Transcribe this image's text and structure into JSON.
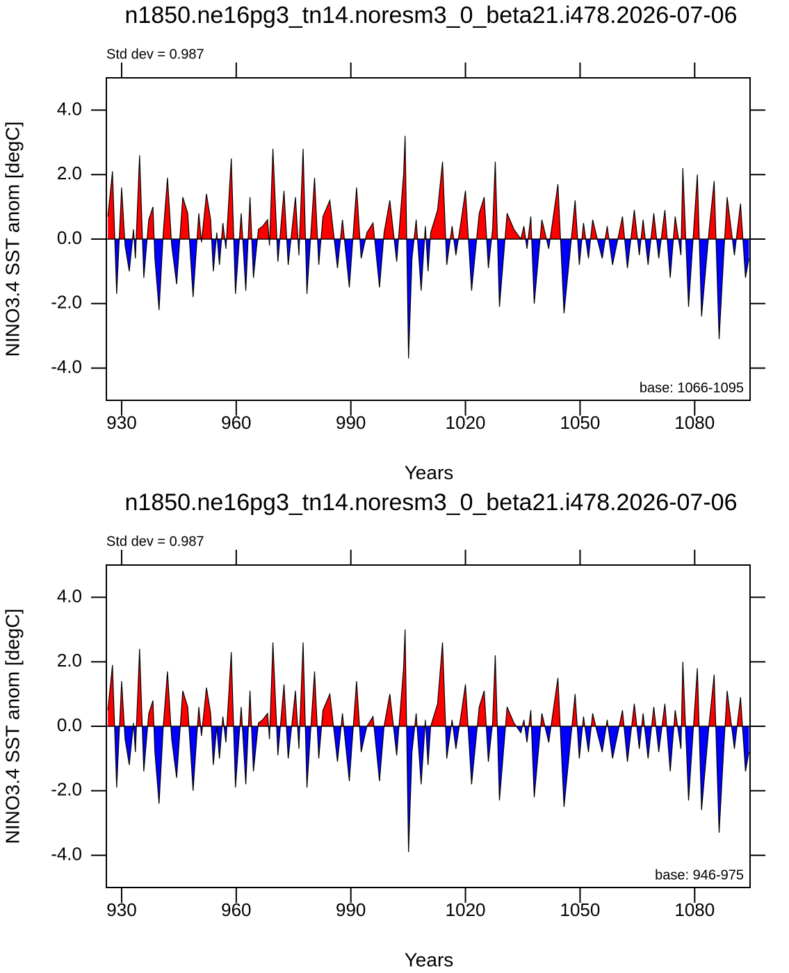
{
  "chart_data": [
    {
      "type": "area",
      "title": "n1850.ne16pg3_tn14.noresm3_0_beta21.i478.2026-07-06",
      "annotation": "Std dev = 0.987",
      "base_label": "base: 1066-1095",
      "x_label": "Years",
      "y_label": "NINO3.4 SST anom [degC]",
      "positive_color": "#ff0000",
      "negative_color": "#0000ff",
      "line_color": "#000000",
      "xlim": [
        926,
        1094.5
      ],
      "ylim": [
        -5,
        5
      ],
      "xticks": [
        930,
        960,
        990,
        1020,
        1050,
        1080
      ],
      "yticks": [
        {
          "value": -4,
          "label": "-4.0"
        },
        {
          "value": -2,
          "label": "-2.0"
        },
        {
          "value": 0,
          "label": "0.0"
        },
        {
          "value": 2,
          "label": "2.0"
        },
        {
          "value": 4,
          "label": "4.0"
        }
      ],
      "x": [
        926.4,
        927.6,
        928.7,
        930,
        930.9,
        932,
        933.1,
        933.6,
        934.7,
        935.8,
        937.1,
        938.2,
        938.7,
        939.8,
        940.9,
        942,
        943.1,
        944.4,
        946,
        947.3,
        948.7,
        950.2,
        950.9,
        952.2,
        953.3,
        954,
        954.9,
        955.6,
        956.5,
        957.3,
        958.7,
        959.8,
        961.3,
        962.5,
        963.6,
        964.5,
        965.8,
        966.9,
        968.2,
        968.7,
        969.6,
        970.9,
        972.5,
        973.6,
        975.5,
        976.4,
        977.5,
        978.5,
        980.5,
        981.6,
        982.7,
        984.5,
        986.5,
        987.8,
        989.6,
        991.5,
        992.7,
        994.2,
        995.8,
        997.5,
        998.7,
        1000.2,
        1002,
        1003.8,
        1004.2,
        1005.1,
        1006,
        1007.1,
        1008.4,
        1009.5,
        1010.2,
        1010.9,
        1012.7,
        1014,
        1015.1,
        1016.5,
        1017.5,
        1018.9,
        1020,
        1021.6,
        1023.6,
        1024.9,
        1026,
        1027.1,
        1027.8,
        1028.9,
        1030.9,
        1032.7,
        1034.5,
        1035.3,
        1036.1,
        1037.1,
        1038,
        1040,
        1041.8,
        1044.2,
        1045.8,
        1047.3,
        1048.7,
        1049.8,
        1050.9,
        1052.2,
        1053.3,
        1054.5,
        1055.8,
        1057.1,
        1058.5,
        1061.1,
        1062.4,
        1064.2,
        1065.5,
        1066.5,
        1067.8,
        1069.3,
        1070.6,
        1072.2,
        1073.6,
        1074.9,
        1076.4,
        1076.9,
        1078.4,
        1080.7,
        1081.8,
        1083.8,
        1085.1,
        1086.4,
        1087.6,
        1088.5,
        1090.4,
        1092,
        1093.3,
        1094.2
      ],
      "values": [
        0.7,
        2.1,
        -1.7,
        1.6,
        -0.2,
        -1.0,
        0.3,
        -0.6,
        2.6,
        -1.2,
        0.6,
        1.0,
        -0.6,
        -2.2,
        0.2,
        1.9,
        -0.2,
        -1.4,
        1.3,
        0.8,
        -1.8,
        0.8,
        -0.1,
        1.4,
        0.6,
        -1.0,
        0.2,
        -0.8,
        0.5,
        -0.3,
        2.5,
        -1.7,
        0.8,
        -1.6,
        1.3,
        -1.2,
        0.3,
        0.4,
        0.6,
        -0.2,
        2.8,
        -0.7,
        1.5,
        -0.8,
        1.3,
        -0.5,
        2.8,
        -1.7,
        1.9,
        -0.8,
        0.7,
        1.2,
        -0.9,
        0.6,
        -1.5,
        1.6,
        -0.6,
        0.2,
        0.5,
        -1.5,
        0.2,
        1.2,
        -0.7,
        2.0,
        3.2,
        -3.7,
        -0.6,
        0.6,
        -1.6,
        0.4,
        -1.0,
        0.2,
        0.9,
        2.4,
        -0.8,
        0.4,
        -0.5,
        0.6,
        1.5,
        -1.6,
        0.8,
        1.3,
        -0.9,
        0.3,
        2.4,
        -2.1,
        0.8,
        0.3,
        0.0,
        0.4,
        -0.3,
        0.7,
        -2.0,
        0.6,
        -0.3,
        1.7,
        -2.3,
        -0.5,
        1.2,
        -0.8,
        0.5,
        -0.6,
        0.6,
        0.0,
        -0.6,
        0.4,
        -0.8,
        0.7,
        -0.9,
        0.9,
        -0.5,
        0.6,
        -0.8,
        0.8,
        -0.6,
        0.9,
        -1.2,
        0.7,
        -0.5,
        2.2,
        -2.1,
        2.0,
        -2.4,
        0.3,
        1.8,
        -3.1,
        -0.5,
        1.3,
        -0.5,
        1.1,
        -1.2,
        -0.6
      ]
    },
    {
      "type": "area",
      "title": "n1850.ne16pg3_tn14.noresm3_0_beta21.i478.2026-07-06",
      "annotation": "Std dev = 0.987",
      "base_label": "base: 946-975",
      "x_label": "Years",
      "y_label": "NINO3.4 SST anom [degC]",
      "positive_color": "#ff0000",
      "negative_color": "#0000ff",
      "line_color": "#000000",
      "xlim": [
        926,
        1094.5
      ],
      "ylim": [
        -5,
        5
      ],
      "xticks": [
        930,
        960,
        990,
        1020,
        1050,
        1080
      ],
      "yticks": [
        {
          "value": -4,
          "label": "-4.0"
        },
        {
          "value": -2,
          "label": "-2.0"
        },
        {
          "value": 0,
          "label": "0.0"
        },
        {
          "value": 2,
          "label": "2.0"
        },
        {
          "value": 4,
          "label": "4.0"
        }
      ],
      "x": [
        926.4,
        927.6,
        928.7,
        930,
        930.9,
        932,
        933.1,
        933.6,
        934.7,
        935.8,
        937.1,
        938.2,
        938.7,
        939.8,
        940.9,
        942,
        943.1,
        944.4,
        946,
        947.3,
        948.7,
        950.2,
        950.9,
        952.2,
        953.3,
        954,
        954.9,
        955.6,
        956.5,
        957.3,
        958.7,
        959.8,
        961.3,
        962.5,
        963.6,
        964.5,
        965.8,
        966.9,
        968.2,
        968.7,
        969.6,
        970.9,
        972.5,
        973.6,
        975.5,
        976.4,
        977.5,
        978.5,
        980.5,
        981.6,
        982.7,
        984.5,
        986.5,
        987.8,
        989.6,
        991.5,
        992.7,
        994.2,
        995.8,
        997.5,
        998.7,
        1000.2,
        1002,
        1003.8,
        1004.2,
        1005.1,
        1006,
        1007.1,
        1008.4,
        1009.5,
        1010.2,
        1010.9,
        1012.7,
        1014,
        1015.1,
        1016.5,
        1017.5,
        1018.9,
        1020,
        1021.6,
        1023.6,
        1024.9,
        1026,
        1027.1,
        1027.8,
        1028.9,
        1030.9,
        1032.7,
        1034.5,
        1035.3,
        1036.1,
        1037.1,
        1038,
        1040,
        1041.8,
        1044.2,
        1045.8,
        1047.3,
        1048.7,
        1049.8,
        1050.9,
        1052.2,
        1053.3,
        1054.5,
        1055.8,
        1057.1,
        1058.5,
        1061.1,
        1062.4,
        1064.2,
        1065.5,
        1066.5,
        1067.8,
        1069.3,
        1070.6,
        1072.2,
        1073.6,
        1074.9,
        1076.4,
        1076.9,
        1078.4,
        1080.7,
        1081.8,
        1083.8,
        1085.1,
        1086.4,
        1087.6,
        1088.5,
        1090.4,
        1092,
        1093.3,
        1094.2
      ],
      "values": [
        0.5,
        1.9,
        -1.9,
        1.4,
        -0.4,
        -1.2,
        0.1,
        -0.8,
        2.4,
        -1.4,
        0.4,
        0.8,
        -0.8,
        -2.4,
        0.0,
        1.7,
        -0.4,
        -1.6,
        1.1,
        0.6,
        -2.0,
        0.6,
        -0.3,
        1.2,
        0.4,
        -1.2,
        0.0,
        -1.0,
        0.3,
        -0.5,
        2.3,
        -1.9,
        0.6,
        -1.8,
        1.1,
        -1.4,
        0.1,
        0.2,
        0.4,
        -0.4,
        2.6,
        -0.9,
        1.3,
        -1.0,
        1.1,
        -0.7,
        2.6,
        -1.9,
        1.7,
        -1.0,
        0.5,
        1.0,
        -1.1,
        0.4,
        -1.7,
        1.4,
        -0.8,
        0.0,
        0.3,
        -1.7,
        0.0,
        1.0,
        -0.9,
        1.8,
        3.0,
        -3.9,
        -0.8,
        0.4,
        -1.8,
        0.2,
        -1.2,
        0.0,
        0.7,
        2.6,
        -1.0,
        0.2,
        -0.7,
        0.4,
        1.3,
        -1.8,
        0.6,
        1.1,
        -1.1,
        0.1,
        2.2,
        -2.3,
        0.6,
        0.1,
        -0.2,
        0.2,
        -0.5,
        0.5,
        -2.2,
        0.4,
        -0.5,
        1.5,
        -2.5,
        -0.7,
        1.0,
        -1.0,
        0.3,
        -0.8,
        0.4,
        -0.2,
        -0.8,
        0.2,
        -1.0,
        0.5,
        -1.1,
        0.7,
        -0.7,
        0.4,
        -1.0,
        0.6,
        -0.8,
        0.7,
        -1.4,
        0.5,
        -0.7,
        2.0,
        -2.3,
        1.8,
        -2.6,
        0.1,
        1.6,
        -3.3,
        -0.7,
        1.1,
        -0.7,
        0.9,
        -1.4,
        -0.8
      ]
    }
  ]
}
